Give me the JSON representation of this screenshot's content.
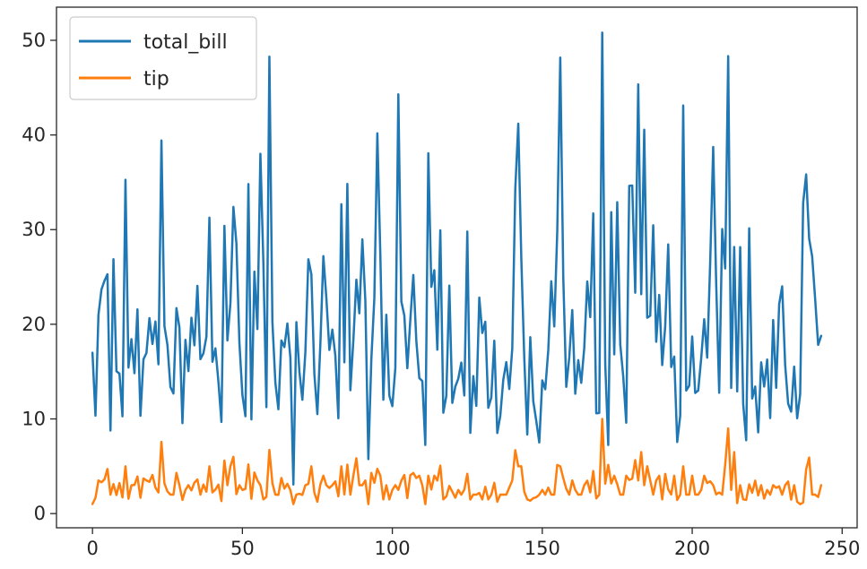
{
  "chart_data": {
    "type": "line",
    "title": "",
    "xlabel": "",
    "ylabel": "",
    "xlim": [
      -12,
      255
    ],
    "ylim": [
      -1.5,
      53.5
    ],
    "xticks": [
      0,
      50,
      100,
      150,
      200,
      250
    ],
    "yticks": [
      0,
      10,
      20,
      30,
      40,
      50
    ],
    "grid": false,
    "legend": "top-left",
    "series": [
      {
        "name": "total_bill",
        "color": "#1f77b4",
        "x": [
          0,
          1,
          2,
          3,
          4,
          5,
          6,
          7,
          8,
          9,
          10,
          11,
          12,
          13,
          14,
          15,
          16,
          17,
          18,
          19,
          20,
          21,
          22,
          23,
          24,
          25,
          26,
          27,
          28,
          29,
          30,
          31,
          32,
          33,
          34,
          35,
          36,
          37,
          38,
          39,
          40,
          41,
          42,
          43,
          44,
          45,
          46,
          47,
          48,
          49,
          50,
          51,
          52,
          53,
          54,
          55,
          56,
          57,
          58,
          59,
          60,
          61,
          62,
          63,
          64,
          65,
          66,
          67,
          68,
          69,
          70,
          71,
          72,
          73,
          74,
          75,
          76,
          77,
          78,
          79,
          80,
          81,
          82,
          83,
          84,
          85,
          86,
          87,
          88,
          89,
          90,
          91,
          92,
          93,
          94,
          95,
          96,
          97,
          98,
          99,
          100,
          101,
          102,
          103,
          104,
          105,
          106,
          107,
          108,
          109,
          110,
          111,
          112,
          113,
          114,
          115,
          116,
          117,
          118,
          119,
          120,
          121,
          122,
          123,
          124,
          125,
          126,
          127,
          128,
          129,
          130,
          131,
          132,
          133,
          134,
          135,
          136,
          137,
          138,
          139,
          140,
          141,
          142,
          143,
          144,
          145,
          146,
          147,
          148,
          149,
          150,
          151,
          152,
          153,
          154,
          155,
          156,
          157,
          158,
          159,
          160,
          161,
          162,
          163,
          164,
          165,
          166,
          167,
          168,
          169,
          170,
          171,
          172,
          173,
          174,
          175,
          176,
          177,
          178,
          179,
          180,
          181,
          182,
          183,
          184,
          185,
          186,
          187,
          188,
          189,
          190,
          191,
          192,
          193,
          194,
          195,
          196,
          197,
          198,
          199,
          200,
          201,
          202,
          203,
          204,
          205,
          206,
          207,
          208,
          209,
          210,
          211,
          212,
          213,
          214,
          215,
          216,
          217,
          218,
          219,
          220,
          221,
          222,
          223,
          224,
          225,
          226,
          227,
          228,
          229,
          230,
          231,
          232,
          233,
          234,
          235,
          236,
          237,
          238,
          239,
          240,
          241,
          242,
          243
        ],
        "values": [
          16.99,
          10.34,
          21.01,
          23.68,
          24.59,
          25.29,
          8.77,
          26.88,
          15.04,
          14.78,
          10.27,
          35.26,
          15.42,
          18.43,
          14.83,
          21.58,
          10.33,
          16.29,
          16.97,
          20.65,
          17.92,
          20.29,
          15.77,
          39.42,
          19.82,
          17.81,
          13.37,
          12.69,
          21.7,
          19.65,
          9.55,
          18.35,
          15.06,
          20.69,
          17.78,
          24.06,
          16.31,
          16.93,
          18.69,
          31.27,
          16.04,
          17.46,
          13.94,
          9.68,
          30.4,
          18.29,
          22.23,
          32.4,
          28.55,
          18.04,
          12.54,
          10.29,
          34.81,
          9.94,
          25.56,
          19.49,
          38.01,
          26.41,
          11.24,
          48.27,
          20.29,
          13.81,
          11.02,
          18.29,
          17.59,
          20.08,
          16.45,
          3.07,
          20.23,
          15.01,
          12.02,
          17.07,
          26.86,
          25.28,
          14.73,
          10.51,
          17.92,
          27.2,
          22.76,
          17.29,
          19.44,
          16.66,
          10.07,
          32.68,
          15.98,
          34.83,
          13.03,
          18.28,
          24.71,
          21.16,
          28.97,
          22.49,
          5.75,
          16.32,
          22.75,
          40.17,
          27.28,
          12.03,
          21.01,
          12.46,
          11.35,
          15.38,
          44.3,
          22.42,
          20.92,
          15.36,
          20.49,
          25.21,
          18.24,
          14.31,
          14.0,
          7.25,
          38.07,
          23.95,
          25.71,
          17.31,
          29.93,
          10.65,
          12.43,
          24.08,
          11.69,
          13.42,
          14.26,
          15.95,
          12.48,
          29.8,
          8.52,
          14.52,
          11.38,
          22.82,
          19.08,
          20.27,
          11.17,
          12.26,
          18.26,
          8.51,
          10.33,
          14.15,
          16.0,
          13.16,
          17.47,
          34.3,
          41.19,
          27.05,
          16.43,
          8.35,
          18.64,
          11.87,
          9.78,
          7.51,
          14.07,
          13.13,
          17.26,
          24.55,
          19.77,
          29.85,
          48.17,
          25.0,
          13.39,
          16.49,
          21.5,
          12.66,
          16.21,
          13.81,
          17.51,
          24.52,
          20.76,
          31.71,
          10.59,
          10.63,
          50.81,
          15.81,
          7.25,
          31.85,
          16.82,
          32.9,
          17.89,
          14.48,
          9.6,
          34.63,
          34.65,
          23.33,
          45.35,
          23.17,
          40.55,
          20.69,
          20.9,
          30.46,
          18.15,
          23.1,
          15.69,
          19.81,
          28.44,
          15.48,
          16.58,
          7.56,
          10.34,
          43.11,
          13.0,
          13.51,
          18.71,
          12.74,
          13.0,
          16.4,
          20.53,
          16.47,
          26.59,
          38.73,
          24.27,
          12.76,
          30.06,
          25.89,
          48.33,
          13.27,
          28.17,
          12.9,
          28.15,
          11.59,
          7.74,
          30.14,
          12.16,
          13.42,
          8.58,
          15.98,
          13.42,
          16.27,
          10.09,
          20.45,
          13.28,
          22.12,
          24.01,
          15.69,
          11.61,
          10.77,
          15.53,
          10.07,
          12.6,
          32.83,
          35.83,
          29.03,
          27.18,
          22.67,
          17.82,
          18.78
        ]
      },
      {
        "name": "tip",
        "color": "#ff7f0e",
        "x": [
          0,
          1,
          2,
          3,
          4,
          5,
          6,
          7,
          8,
          9,
          10,
          11,
          12,
          13,
          14,
          15,
          16,
          17,
          18,
          19,
          20,
          21,
          22,
          23,
          24,
          25,
          26,
          27,
          28,
          29,
          30,
          31,
          32,
          33,
          34,
          35,
          36,
          37,
          38,
          39,
          40,
          41,
          42,
          43,
          44,
          45,
          46,
          47,
          48,
          49,
          50,
          51,
          52,
          53,
          54,
          55,
          56,
          57,
          58,
          59,
          60,
          61,
          62,
          63,
          64,
          65,
          66,
          67,
          68,
          69,
          70,
          71,
          72,
          73,
          74,
          75,
          76,
          77,
          78,
          79,
          80,
          81,
          82,
          83,
          84,
          85,
          86,
          87,
          88,
          89,
          90,
          91,
          92,
          93,
          94,
          95,
          96,
          97,
          98,
          99,
          100,
          101,
          102,
          103,
          104,
          105,
          106,
          107,
          108,
          109,
          110,
          111,
          112,
          113,
          114,
          115,
          116,
          117,
          118,
          119,
          120,
          121,
          122,
          123,
          124,
          125,
          126,
          127,
          128,
          129,
          130,
          131,
          132,
          133,
          134,
          135,
          136,
          137,
          138,
          139,
          140,
          141,
          142,
          143,
          144,
          145,
          146,
          147,
          148,
          149,
          150,
          151,
          152,
          153,
          154,
          155,
          156,
          157,
          158,
          159,
          160,
          161,
          162,
          163,
          164,
          165,
          166,
          167,
          168,
          169,
          170,
          171,
          172,
          173,
          174,
          175,
          176,
          177,
          178,
          179,
          180,
          181,
          182,
          183,
          184,
          185,
          186,
          187,
          188,
          189,
          190,
          191,
          192,
          193,
          194,
          195,
          196,
          197,
          198,
          199,
          200,
          201,
          202,
          203,
          204,
          205,
          206,
          207,
          208,
          209,
          210,
          211,
          212,
          213,
          214,
          215,
          216,
          217,
          218,
          219,
          220,
          221,
          222,
          223,
          224,
          225,
          226,
          227,
          228,
          229,
          230,
          231,
          232,
          233,
          234,
          235,
          236,
          237,
          238,
          239,
          240,
          241,
          242,
          243
        ],
        "values": [
          1.01,
          1.66,
          3.5,
          3.31,
          3.61,
          4.71,
          2.0,
          3.12,
          1.96,
          3.23,
          1.71,
          5.0,
          1.57,
          3.0,
          3.02,
          3.92,
          1.67,
          3.71,
          3.5,
          3.35,
          4.08,
          2.75,
          2.23,
          7.58,
          3.18,
          2.34,
          2.0,
          2.0,
          4.3,
          3.0,
          1.45,
          2.5,
          3.0,
          2.45,
          3.27,
          3.6,
          2.0,
          3.07,
          2.31,
          5.0,
          2.24,
          2.54,
          3.06,
          1.32,
          5.6,
          3.0,
          5.0,
          6.0,
          2.05,
          3.0,
          2.5,
          2.6,
          5.2,
          1.56,
          4.34,
          3.51,
          3.0,
          1.5,
          1.76,
          6.73,
          3.21,
          2.0,
          1.98,
          3.76,
          2.64,
          3.15,
          2.47,
          1.0,
          2.01,
          2.09,
          1.97,
          3.0,
          3.14,
          5.0,
          2.2,
          1.25,
          3.08,
          4.0,
          3.0,
          2.71,
          3.0,
          3.4,
          1.83,
          5.0,
          2.03,
          5.17,
          2.0,
          4.0,
          5.85,
          3.0,
          3.0,
          3.5,
          1.0,
          4.3,
          3.25,
          4.73,
          4.0,
          1.5,
          3.0,
          1.5,
          2.5,
          3.0,
          2.5,
          3.48,
          4.08,
          1.64,
          4.06,
          4.29,
          3.76,
          4.0,
          3.0,
          1.0,
          4.0,
          2.55,
          4.0,
          3.5,
          5.07,
          1.5,
          1.8,
          2.92,
          2.31,
          1.68,
          2.5,
          2.0,
          2.52,
          4.2,
          1.48,
          2.0,
          2.0,
          2.18,
          1.5,
          2.83,
          1.5,
          2.0,
          3.25,
          1.25,
          2.0,
          2.0,
          2.0,
          2.75,
          3.5,
          6.7,
          5.0,
          5.0,
          2.3,
          1.5,
          1.36,
          1.63,
          1.73,
          2.0,
          2.5,
          2.0,
          2.74,
          2.0,
          2.0,
          5.14,
          5.0,
          3.75,
          2.61,
          2.0,
          3.5,
          2.5,
          2.0,
          2.0,
          3.0,
          3.48,
          2.24,
          4.5,
          1.61,
          2.0,
          10.0,
          3.16,
          5.15,
          3.18,
          4.0,
          3.11,
          2.0,
          2.0,
          4.0,
          3.55,
          3.68,
          5.65,
          3.5,
          6.5,
          3.0,
          5.0,
          3.5,
          2.0,
          3.5,
          4.0,
          1.5,
          4.19,
          2.56,
          2.02,
          4.0,
          1.44,
          2.0,
          5.0,
          2.0,
          2.0,
          4.0,
          2.01,
          2.0,
          2.5,
          4.0,
          3.23,
          3.41,
          3.0,
          2.03,
          2.23,
          2.0,
          5.16,
          9.0,
          2.5,
          6.5,
          1.1,
          3.0,
          1.5,
          1.44,
          3.09,
          2.2,
          3.48,
          1.92,
          3.0,
          1.58,
          2.5,
          2.0,
          3.0,
          2.72,
          2.88,
          2.0,
          3.0,
          3.39,
          1.47,
          3.0,
          1.25,
          1.0,
          1.17,
          4.67,
          5.92,
          2.0,
          2.0,
          1.75,
          3.0
        ]
      }
    ]
  }
}
